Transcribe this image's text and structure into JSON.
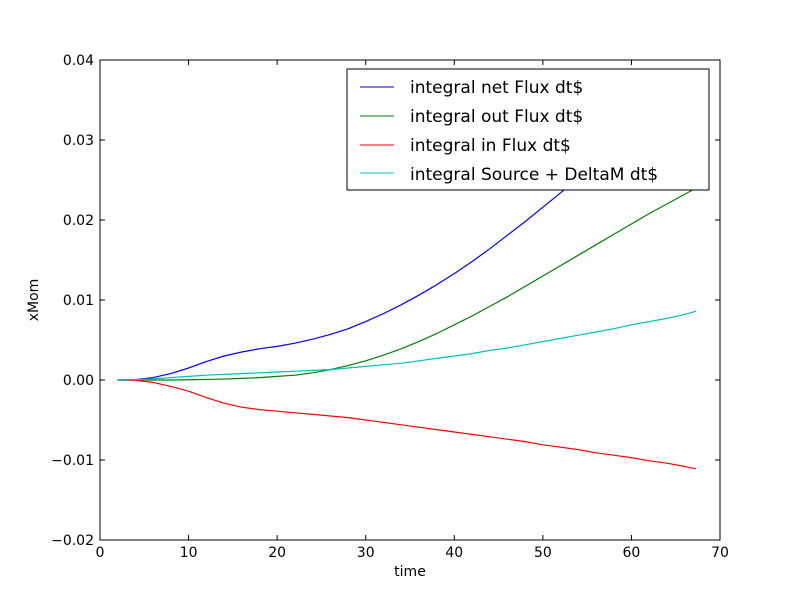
{
  "chart_data": {
    "type": "line",
    "title": "",
    "xlabel": "time",
    "ylabel": "xMom",
    "xlim": [
      0,
      70
    ],
    "ylim": [
      -0.02,
      0.04
    ],
    "xticks": [
      0,
      10,
      20,
      30,
      40,
      50,
      60,
      70
    ],
    "xtick_labels": [
      "0",
      "10",
      "20",
      "30",
      "40",
      "50",
      "60",
      "70"
    ],
    "yticks": [
      -0.02,
      -0.01,
      0.0,
      0.01,
      0.02,
      0.03,
      0.04
    ],
    "ytick_labels": [
      "−0.02",
      "−0.01",
      "0.00",
      "0.01",
      "0.02",
      "0.03",
      "0.04"
    ],
    "grid": false,
    "legend_position": "top-right",
    "series": [
      {
        "name": "integral net Flux dt$",
        "color": "#0000ff",
        "x": [
          2,
          4,
          6,
          8,
          10,
          12,
          14,
          16,
          18,
          20,
          22,
          24,
          26,
          28,
          30,
          32,
          34,
          36,
          38,
          40,
          42,
          44,
          46,
          48,
          50,
          52,
          54,
          56,
          58,
          60,
          62,
          64,
          66,
          67.3
        ],
        "y": [
          0,
          5e-05,
          0.0003,
          0.0008,
          0.0015,
          0.0023,
          0.003,
          0.0035,
          0.0039,
          0.0042,
          0.0046,
          0.0051,
          0.0057,
          0.0064,
          0.0073,
          0.0083,
          0.0094,
          0.0106,
          0.0119,
          0.0133,
          0.0148,
          0.0164,
          0.0181,
          0.0198,
          0.0216,
          0.0234,
          0.0252,
          0.0271,
          0.029,
          0.031,
          0.033,
          0.035,
          0.037,
          0.0383
        ]
      },
      {
        "name": "integral out Flux dt$",
        "color": "#008000",
        "x": [
          2,
          4,
          6,
          8,
          10,
          12,
          14,
          16,
          18,
          20,
          22,
          24,
          26,
          28,
          30,
          32,
          34,
          36,
          38,
          40,
          42,
          44,
          46,
          48,
          50,
          52,
          54,
          56,
          58,
          60,
          62,
          64,
          66,
          67.3
        ],
        "y": [
          0,
          0,
          0,
          0,
          3e-05,
          7e-05,
          0.00012,
          0.0002,
          0.0003,
          0.00045,
          0.0006,
          0.0009,
          0.0013,
          0.0018,
          0.0024,
          0.0031,
          0.0039,
          0.0048,
          0.0058,
          0.0069,
          0.008,
          0.0092,
          0.0104,
          0.0117,
          0.013,
          0.0143,
          0.0156,
          0.0169,
          0.0182,
          0.0195,
          0.0208,
          0.022,
          0.0232,
          0.024
        ]
      },
      {
        "name": "integral in Flux dt$",
        "color": "#ff0000",
        "x": [
          2,
          4,
          6,
          8,
          10,
          12,
          14,
          16,
          18,
          20,
          22,
          24,
          26,
          28,
          30,
          32,
          34,
          36,
          38,
          40,
          42,
          44,
          46,
          48,
          50,
          52,
          54,
          56,
          58,
          60,
          62,
          64,
          66,
          67.3
        ],
        "y": [
          0,
          -5e-05,
          -0.0003,
          -0.0008,
          -0.0014,
          -0.0022,
          -0.0029,
          -0.0034,
          -0.0037,
          -0.0039,
          -0.0041,
          -0.0043,
          -0.0045,
          -0.0047,
          -0.005,
          -0.0053,
          -0.0056,
          -0.0059,
          -0.0062,
          -0.0065,
          -0.0068,
          -0.0071,
          -0.0074,
          -0.0077,
          -0.0081,
          -0.0084,
          -0.0087,
          -0.0091,
          -0.0094,
          -0.0097,
          -0.0101,
          -0.0104,
          -0.0108,
          -0.0111
        ]
      },
      {
        "name": "integral Source + DeltaM dt$",
        "color": "#00bfbf",
        "x": [
          2,
          4,
          6,
          8,
          10,
          12,
          14,
          16,
          18,
          20,
          22,
          24,
          26,
          28,
          30,
          32,
          34,
          36,
          38,
          40,
          42,
          44,
          46,
          48,
          50,
          52,
          54,
          56,
          58,
          60,
          62,
          64,
          66,
          67.3
        ],
        "y": [
          0,
          5e-05,
          0.00015,
          0.0003,
          0.00045,
          0.0006,
          0.0007,
          0.0008,
          0.0009,
          0.001,
          0.0011,
          0.0012,
          0.0013,
          0.0015,
          0.0017,
          0.0019,
          0.0021,
          0.0024,
          0.0027,
          0.003,
          0.0033,
          0.0037,
          0.004,
          0.0044,
          0.0048,
          0.0052,
          0.0056,
          0.006,
          0.0064,
          0.0069,
          0.0073,
          0.0077,
          0.0082,
          0.0086
        ]
      }
    ]
  }
}
